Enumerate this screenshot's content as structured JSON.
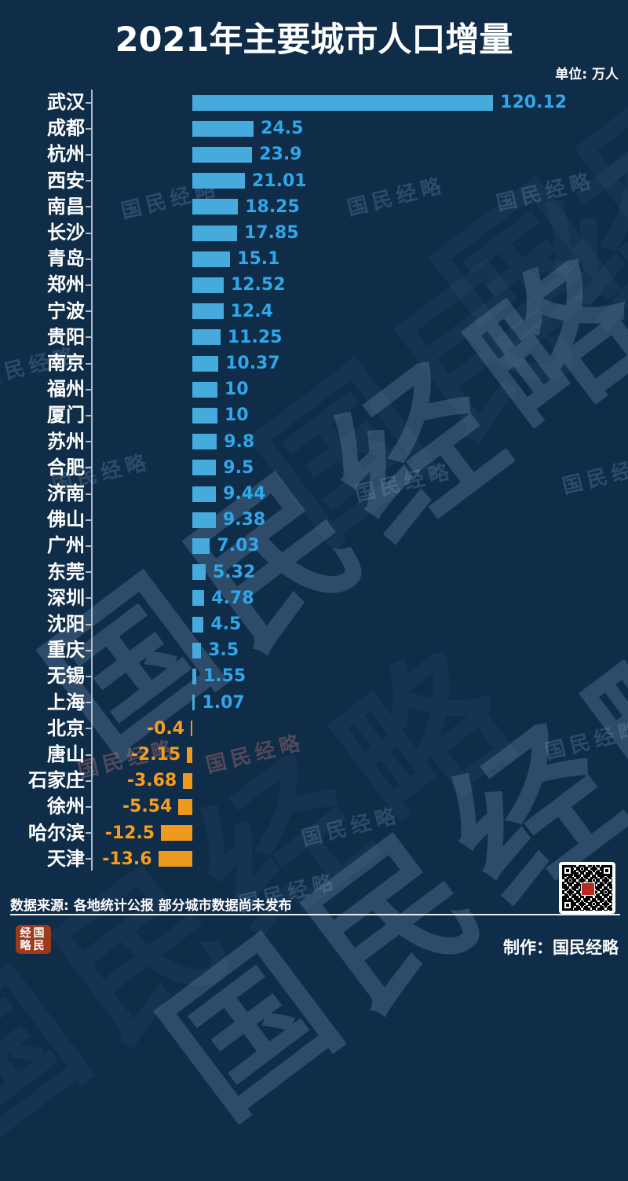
{
  "header": {
    "title": "2021年主要城市人口增量",
    "unit_label": "单位: 万人"
  },
  "footer": {
    "source_note": "数据来源: 各地统计公报 部分城市数据尚未发布",
    "maker_label": "制作：国民经略"
  },
  "watermark": {
    "text": "国民经略"
  },
  "stamp": {
    "rows": [
      "经国",
      "略民"
    ]
  },
  "colors": {
    "background": "#0f2c48",
    "bar_positive": "#47aadd",
    "bar_negative": "#ee9a1f",
    "value_positive": "#2fa7e9",
    "value_negative": "#f59d20",
    "axis": "#c8d5e2",
    "text": "#ffffff"
  },
  "chart_data": {
    "type": "bar",
    "orientation": "horizontal",
    "title": "2021年主要城市人口增量",
    "unit": "万人",
    "legend": false,
    "grid": false,
    "value_range_shown": [
      -13.6,
      120.12
    ],
    "categories": [
      "武汉",
      "成都",
      "杭州",
      "西安",
      "南昌",
      "长沙",
      "青岛",
      "郑州",
      "宁波",
      "贵阳",
      "南京",
      "福州",
      "厦门",
      "苏州",
      "合肥",
      "济南",
      "佛山",
      "广州",
      "东莞",
      "深圳",
      "沈阳",
      "重庆",
      "无锡",
      "上海",
      "北京",
      "唐山",
      "石家庄",
      "徐州",
      "哈尔滨",
      "天津"
    ],
    "values": [
      120.12,
      24.5,
      23.9,
      21.01,
      18.25,
      17.85,
      15.1,
      12.52,
      12.4,
      11.25,
      10.37,
      10,
      10,
      9.8,
      9.5,
      9.44,
      9.38,
      7.03,
      5.32,
      4.78,
      4.5,
      3.5,
      1.55,
      1.07,
      -0.4,
      -2.15,
      -3.68,
      -5.54,
      -12.5,
      -13.6
    ]
  }
}
